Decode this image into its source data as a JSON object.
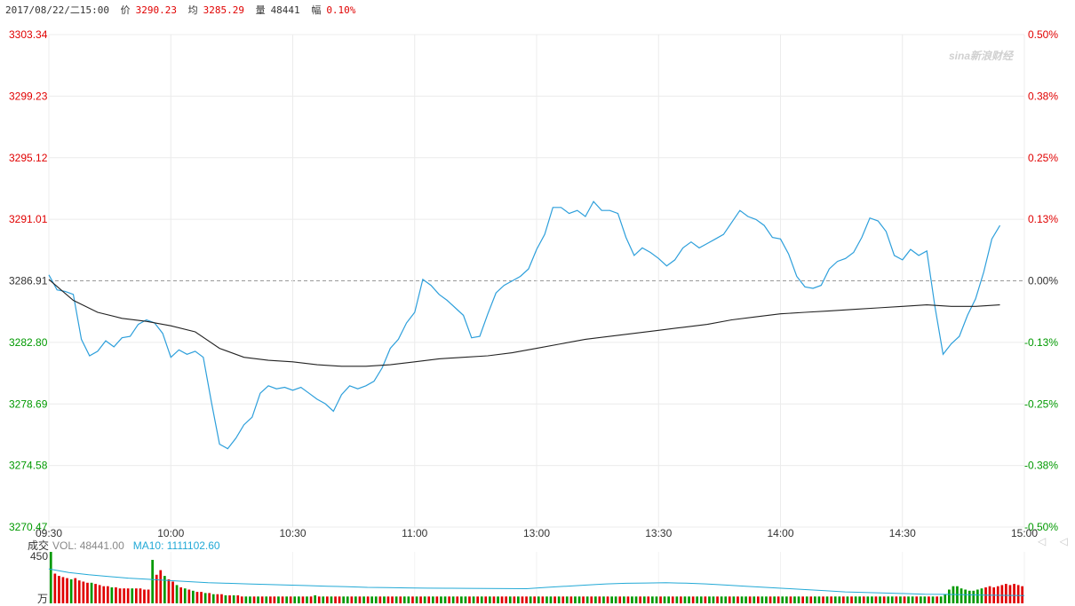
{
  "header": {
    "datetime": "2017/08/22/二15:00",
    "price_label": "价",
    "price_value": "3290.23",
    "avg_label": "均",
    "avg_value": "3285.29",
    "volume_label": "量",
    "volume_value": "48441",
    "change_label": "幅",
    "change_value": "0.10%"
  },
  "watermark": "sina新浪财经",
  "volume_panel": {
    "label": "成交",
    "vol_text": "VOL: 48441.00",
    "ma10_text": "MA10: 1111102.60",
    "ymax": "450",
    "unit": "万"
  },
  "scroll_arrows": "◁ ◁",
  "colors": {
    "up": "#e00000",
    "down": "#009900",
    "price_line": "#2d9fdb",
    "avg_line": "#222222",
    "ma_line": "#22a9d6"
  },
  "chart_data": {
    "type": "line",
    "title": "",
    "xlabel": "",
    "ylabel": "",
    "x_tick_labels": [
      "09:30",
      "10:00",
      "10:30",
      "11:00",
      "13:00",
      "13:30",
      "14:00",
      "14:30",
      "15:00"
    ],
    "y_tick_labels_left": [
      "3303.34",
      "3299.23",
      "3295.12",
      "3291.01",
      "3286.91",
      "3282.80",
      "3278.69",
      "3274.58",
      "3270.47"
    ],
    "y_tick_labels_right": [
      "0.50%",
      "0.38%",
      "0.25%",
      "0.13%",
      "0.00%",
      "-0.13%",
      "-0.25%",
      "-0.38%",
      "-0.50%"
    ],
    "ylim": [
      3270.47,
      3303.34
    ],
    "baseline": 3286.91,
    "x_minutes_range": [
      0,
      240
    ],
    "series": [
      {
        "points": [
          [
            0,
            3287.3
          ],
          [
            2,
            3286.3
          ],
          [
            4,
            3286.2
          ],
          [
            6,
            3286.0
          ],
          [
            8,
            3283.0
          ],
          [
            10,
            3281.9
          ],
          [
            12,
            3282.2
          ],
          [
            14,
            3282.9
          ],
          [
            16,
            3282.5
          ],
          [
            18,
            3283.1
          ],
          [
            20,
            3283.2
          ],
          [
            22,
            3284.0
          ],
          [
            24,
            3284.3
          ],
          [
            26,
            3284.1
          ],
          [
            28,
            3283.4
          ],
          [
            30,
            3281.8
          ],
          [
            32,
            3282.3
          ],
          [
            34,
            3282.0
          ],
          [
            36,
            3282.2
          ],
          [
            38,
            3281.8
          ],
          [
            40,
            3278.8
          ],
          [
            42,
            3276.0
          ],
          [
            44,
            3275.7
          ],
          [
            46,
            3276.4
          ],
          [
            48,
            3277.3
          ],
          [
            50,
            3277.8
          ],
          [
            52,
            3279.4
          ],
          [
            54,
            3279.9
          ],
          [
            56,
            3279.7
          ],
          [
            58,
            3279.8
          ],
          [
            60,
            3279.6
          ],
          [
            62,
            3279.8
          ],
          [
            64,
            3279.4
          ],
          [
            66,
            3279.0
          ],
          [
            68,
            3278.7
          ],
          [
            70,
            3278.2
          ],
          [
            72,
            3279.3
          ],
          [
            74,
            3279.9
          ],
          [
            76,
            3279.7
          ],
          [
            78,
            3279.9
          ],
          [
            80,
            3280.2
          ],
          [
            82,
            3281.1
          ],
          [
            84,
            3282.4
          ],
          [
            86,
            3283.0
          ],
          [
            88,
            3284.1
          ],
          [
            90,
            3284.8
          ],
          [
            92,
            3287.0
          ],
          [
            94,
            3286.6
          ],
          [
            96,
            3286.0
          ],
          [
            98,
            3285.6
          ],
          [
            100,
            3285.1
          ],
          [
            102,
            3284.6
          ],
          [
            104,
            3283.1
          ],
          [
            106,
            3283.2
          ],
          [
            108,
            3284.7
          ],
          [
            110,
            3286.1
          ],
          [
            112,
            3286.6
          ],
          [
            114,
            3286.9
          ],
          [
            116,
            3287.2
          ],
          [
            118,
            3287.7
          ],
          [
            120,
            3289.0
          ],
          [
            122,
            3290.0
          ],
          [
            124,
            3291.8
          ],
          [
            126,
            3291.8
          ],
          [
            128,
            3291.4
          ],
          [
            130,
            3291.6
          ],
          [
            132,
            3291.2
          ],
          [
            134,
            3292.2
          ],
          [
            136,
            3291.6
          ],
          [
            138,
            3291.6
          ],
          [
            140,
            3291.4
          ],
          [
            142,
            3289.8
          ],
          [
            144,
            3288.6
          ],
          [
            146,
            3289.1
          ],
          [
            148,
            3288.8
          ],
          [
            150,
            3288.4
          ],
          [
            152,
            3287.9
          ],
          [
            154,
            3288.3
          ],
          [
            156,
            3289.1
          ],
          [
            158,
            3289.5
          ],
          [
            160,
            3289.1
          ],
          [
            162,
            3289.4
          ],
          [
            164,
            3289.7
          ],
          [
            166,
            3290.0
          ],
          [
            168,
            3290.8
          ],
          [
            170,
            3291.6
          ],
          [
            172,
            3291.2
          ],
          [
            174,
            3291.0
          ],
          [
            176,
            3290.6
          ],
          [
            178,
            3289.8
          ],
          [
            180,
            3289.7
          ],
          [
            182,
            3288.7
          ],
          [
            184,
            3287.2
          ],
          [
            186,
            3286.5
          ],
          [
            188,
            3286.4
          ],
          [
            190,
            3286.6
          ],
          [
            192,
            3287.7
          ],
          [
            194,
            3288.2
          ],
          [
            196,
            3288.4
          ],
          [
            198,
            3288.8
          ],
          [
            200,
            3289.8
          ],
          [
            202,
            3291.1
          ],
          [
            204,
            3290.9
          ],
          [
            206,
            3290.2
          ],
          [
            208,
            3288.6
          ],
          [
            210,
            3288.3
          ],
          [
            212,
            3289.0
          ],
          [
            214,
            3288.6
          ],
          [
            216,
            3288.9
          ],
          [
            218,
            3285.2
          ],
          [
            220,
            3282.0
          ],
          [
            222,
            3282.7
          ],
          [
            224,
            3283.2
          ],
          [
            226,
            3284.6
          ],
          [
            228,
            3285.7
          ],
          [
            230,
            3287.5
          ],
          [
            232,
            3289.7
          ],
          [
            234,
            3290.6
          ]
        ]
      },
      {
        "points": [
          [
            0,
            3287.0
          ],
          [
            6,
            3285.6
          ],
          [
            12,
            3284.8
          ],
          [
            18,
            3284.4
          ],
          [
            24,
            3284.2
          ],
          [
            30,
            3283.9
          ],
          [
            36,
            3283.5
          ],
          [
            42,
            3282.4
          ],
          [
            48,
            3281.8
          ],
          [
            54,
            3281.6
          ],
          [
            60,
            3281.5
          ],
          [
            66,
            3281.3
          ],
          [
            72,
            3281.2
          ],
          [
            78,
            3281.2
          ],
          [
            84,
            3281.3
          ],
          [
            90,
            3281.5
          ],
          [
            96,
            3281.7
          ],
          [
            102,
            3281.8
          ],
          [
            108,
            3281.9
          ],
          [
            114,
            3282.1
          ],
          [
            120,
            3282.4
          ],
          [
            126,
            3282.7
          ],
          [
            132,
            3283.0
          ],
          [
            138,
            3283.2
          ],
          [
            144,
            3283.4
          ],
          [
            150,
            3283.6
          ],
          [
            156,
            3283.8
          ],
          [
            162,
            3284.0
          ],
          [
            168,
            3284.3
          ],
          [
            174,
            3284.5
          ],
          [
            180,
            3284.7
          ],
          [
            186,
            3284.8
          ],
          [
            192,
            3284.9
          ],
          [
            198,
            3285.0
          ],
          [
            204,
            3285.1
          ],
          [
            210,
            3285.2
          ],
          [
            216,
            3285.3
          ],
          [
            222,
            3285.2
          ],
          [
            228,
            3285.2
          ],
          [
            234,
            3285.3
          ]
        ]
      }
    ],
    "volume_bars": {
      "ylim": [
        0,
        450
      ],
      "values": [
        450,
        260,
        240,
        230,
        220,
        210,
        220,
        200,
        190,
        180,
        180,
        170,
        160,
        150,
        150,
        140,
        140,
        130,
        130,
        130,
        130,
        130,
        130,
        120,
        120,
        380,
        250,
        290,
        240,
        210,
        190,
        160,
        140,
        130,
        120,
        110,
        100,
        100,
        90,
        90,
        80,
        80,
        80,
        70,
        70,
        70,
        70,
        60,
        60,
        60,
        60,
        60,
        60,
        60,
        60,
        60,
        60,
        60,
        60,
        60,
        60,
        60,
        60,
        60,
        60,
        70,
        60,
        60,
        60,
        60,
        60,
        60,
        60,
        60,
        60,
        60,
        60,
        60,
        60,
        60,
        60,
        60,
        60,
        60,
        60,
        60,
        60,
        60,
        60,
        60,
        60,
        60,
        60,
        60,
        60,
        60,
        60,
        60,
        60,
        60,
        60,
        60,
        60,
        60,
        60,
        60,
        60,
        60,
        60,
        60,
        60,
        60,
        60,
        60,
        60,
        60,
        60,
        60,
        60,
        60,
        60,
        60,
        60,
        60,
        60,
        60,
        60,
        60,
        60,
        60,
        60,
        60,
        60,
        60,
        60,
        60,
        60,
        60,
        60,
        60,
        60,
        60,
        60,
        60,
        60,
        60,
        60,
        60,
        60,
        60,
        60,
        60,
        60,
        60,
        60,
        60,
        60,
        60,
        60,
        60,
        60,
        60,
        60,
        60,
        60,
        60,
        60,
        60,
        60,
        60,
        60,
        60,
        60,
        60,
        60,
        60,
        60,
        60,
        60,
        60,
        60,
        60,
        60,
        60,
        60,
        60,
        60,
        60,
        60,
        60,
        60,
        60,
        60,
        60,
        60,
        60,
        60,
        60,
        60,
        60,
        60,
        60,
        60,
        60,
        60,
        60,
        60,
        60,
        60,
        60,
        60,
        60,
        60,
        60,
        60,
        60,
        60,
        60,
        60,
        60,
        80,
        120,
        150,
        150,
        130,
        120,
        110,
        110,
        120,
        130,
        140,
        150,
        140,
        150,
        160,
        170,
        160,
        170,
        160,
        150
      ],
      "colors": [
        "d",
        "r",
        "r",
        "r",
        "r",
        "d",
        "r",
        "r",
        "r",
        "r",
        "d",
        "r",
        "r",
        "r",
        "r",
        "d",
        "r",
        "r",
        "r",
        "r",
        "d",
        "r",
        "r",
        "r",
        "r",
        "d",
        "r",
        "r",
        "d",
        "r",
        "r",
        "d",
        "r",
        "d",
        "r",
        "d",
        "r",
        "r",
        "d",
        "r",
        "d",
        "r",
        "r",
        "d",
        "r",
        "d",
        "r",
        "r",
        "d",
        "d",
        "r",
        "d",
        "r",
        "d",
        "r",
        "r",
        "d",
        "r",
        "d",
        "r",
        "d",
        "d",
        "r",
        "d",
        "r",
        "d",
        "r",
        "d",
        "r",
        "d",
        "r",
        "r",
        "d",
        "d",
        "r",
        "d",
        "r",
        "d",
        "r",
        "d",
        "d",
        "r",
        "d",
        "r",
        "r",
        "d",
        "r",
        "d",
        "d",
        "r",
        "d",
        "r",
        "d",
        "r",
        "d",
        "r",
        "d",
        "d",
        "r",
        "d",
        "r",
        "d",
        "d",
        "r",
        "d",
        "r",
        "d",
        "r",
        "d",
        "r",
        "d",
        "r",
        "r",
        "d",
        "r",
        "d",
        "r",
        "r",
        "d",
        "r",
        "d",
        "r",
        "d",
        "d",
        "r",
        "d",
        "r",
        "d",
        "r",
        "d",
        "d",
        "r",
        "d",
        "r",
        "d",
        "r",
        "d",
        "r",
        "d",
        "d",
        "r",
        "d",
        "r",
        "d",
        "d",
        "r",
        "d",
        "r",
        "d",
        "d",
        "r",
        "d",
        "d",
        "r",
        "d",
        "r",
        "d",
        "d",
        "r",
        "d",
        "d",
        "r",
        "d",
        "d",
        "r",
        "d",
        "d",
        "r",
        "d",
        "r",
        "d",
        "d",
        "r",
        "d",
        "r",
        "d",
        "d",
        "r",
        "d",
        "r",
        "d",
        "d",
        "r",
        "d",
        "d",
        "r",
        "d",
        "r",
        "d",
        "d",
        "r",
        "d",
        "r",
        "d",
        "d",
        "r",
        "d",
        "r",
        "d",
        "d",
        "r",
        "d",
        "d",
        "r",
        "d",
        "r",
        "d",
        "d",
        "r",
        "d",
        "r",
        "d",
        "d",
        "r",
        "d",
        "d",
        "r",
        "d",
        "r",
        "d",
        "d",
        "d",
        "d",
        "d",
        "d",
        "d",
        "d",
        "d",
        "d",
        "d",
        "r",
        "r",
        "r",
        "r",
        "r",
        "r",
        "r",
        "r",
        "r",
        "r"
      ],
      "ma10": [
        300,
        270,
        250,
        235,
        220,
        210,
        200,
        190,
        180,
        175,
        170,
        165,
        160,
        155,
        150,
        145,
        140,
        138,
        135,
        133,
        132,
        131,
        130,
        129,
        128,
        140,
        150,
        160,
        170,
        175,
        178,
        180,
        176,
        170,
        160,
        150,
        140,
        130,
        120,
        110,
        100,
        95,
        90,
        85,
        80,
        78,
        75,
        72,
        70,
        68
      ]
    }
  }
}
